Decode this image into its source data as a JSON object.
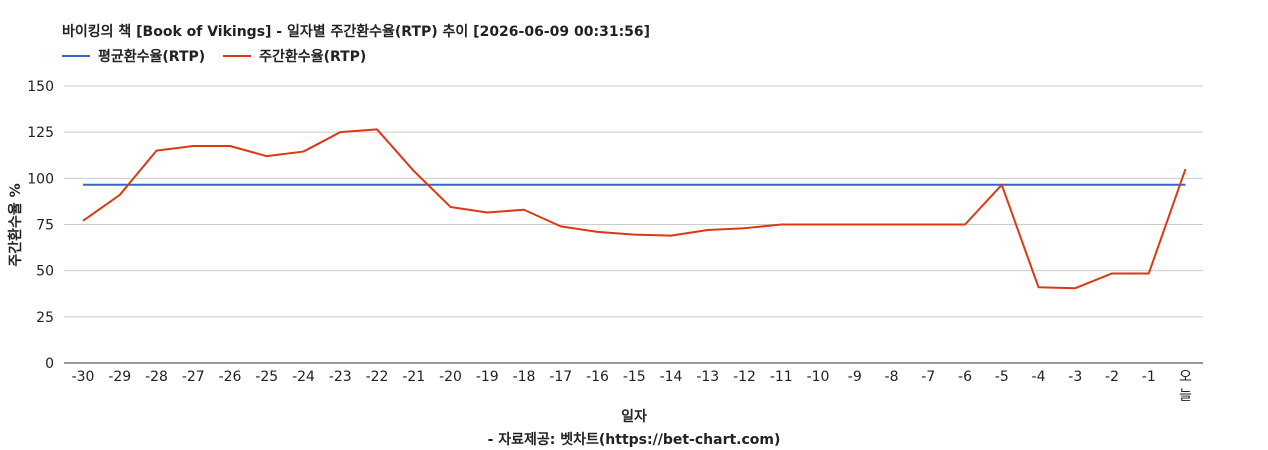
{
  "chart_data": {
    "type": "line",
    "title": "바이킹의 책 [Book of Vikings] - 일자별 주간환수율(RTP) 추이 [2026-06-09 00:31:56]",
    "xlabel": "일자",
    "ylabel": "주간환수율 %",
    "source": "- 자료제공: 벳차트(https://bet-chart.com)",
    "categories": [
      "-30",
      "-29",
      "-28",
      "-27",
      "-26",
      "-25",
      "-24",
      "-23",
      "-22",
      "-21",
      "-20",
      "-19",
      "-18",
      "-17",
      "-16",
      "-15",
      "-14",
      "-13",
      "-12",
      "-11",
      "-10",
      "-9",
      "-8",
      "-7",
      "-6",
      "-5",
      "-4",
      "-3",
      "-2",
      "-1",
      "오늘"
    ],
    "ylim": [
      0,
      150
    ],
    "yticks": [
      0,
      25,
      50,
      75,
      100,
      125,
      150
    ],
    "grid": true,
    "legend_position": "top-left",
    "series": [
      {
        "name": "평균환수율(RTP)",
        "color": "#3366cc",
        "values": [
          96.5,
          96.5,
          96.5,
          96.5,
          96.5,
          96.5,
          96.5,
          96.5,
          96.5,
          96.5,
          96.5,
          96.5,
          96.5,
          96.5,
          96.5,
          96.5,
          96.5,
          96.5,
          96.5,
          96.5,
          96.5,
          96.5,
          96.5,
          96.5,
          96.5,
          96.5,
          96.5,
          96.5,
          96.5,
          96.5,
          96.5
        ]
      },
      {
        "name": "주간환수율(RTP)",
        "color": "#dc3912",
        "values": [
          77,
          91,
          115,
          117.5,
          117.5,
          112,
          114.5,
          125,
          126.5,
          104,
          84.5,
          81.5,
          83,
          74,
          71,
          69.5,
          69,
          72,
          73,
          75,
          75,
          75,
          75,
          75,
          75,
          96.5,
          41,
          40.5,
          48.5,
          48.5,
          105
        ]
      }
    ]
  }
}
